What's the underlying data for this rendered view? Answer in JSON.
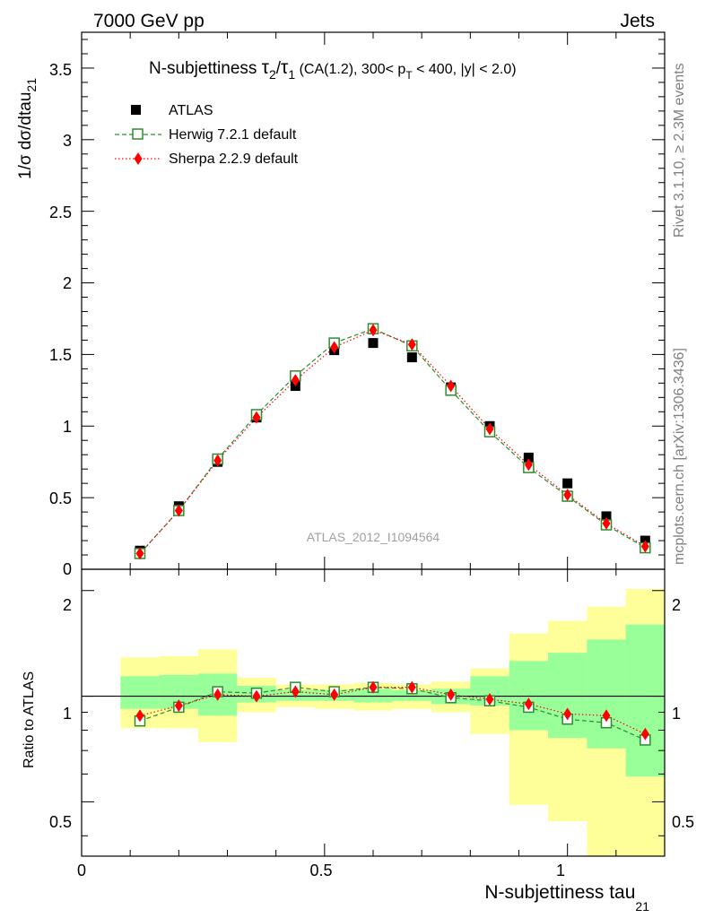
{
  "header": {
    "left": "7000 GeV pp",
    "right": "Jets"
  },
  "title": {
    "prefix": "N-subjettiness ",
    "tau2": "τ",
    "tau2_sub": "2",
    "slash": "/",
    "tau1": "τ",
    "tau1_sub": "1",
    "cond1": " (CA(1.2), 300< p",
    "pt_sub": "T",
    "cond2": " < 400, |y| < 2.0)"
  },
  "side_labels": {
    "rivet": "Rivet 3.1.10, ≥ 2.3M events",
    "mcplots": "mcplots.cern.ch [arXiv:1306.3436]"
  },
  "analysis_id": "ATLAS_2012_I1094564",
  "axis_labels": {
    "top_y_main": "1/σ dσ/dtau",
    "top_y_sub": "21",
    "bottom_y": "Ratio to ATLAS",
    "x_main": "N-subjettiness tau",
    "x_sub": "21"
  },
  "legend": [
    {
      "name": "ATLAS"
    },
    {
      "name": "Herwig 7.2.1 default"
    },
    {
      "name": "Sherpa 2.2.9 default"
    }
  ],
  "ticks": {
    "top_y": [
      "0",
      "0.5",
      "1",
      "1.5",
      "2",
      "2.5",
      "3",
      "3.5"
    ],
    "ratio_y": [
      "0.5",
      "1",
      "2"
    ],
    "x": [
      "0",
      "0.5",
      "1"
    ]
  },
  "colors": {
    "atlas": "#000000",
    "herwig": "#2d8c2d",
    "sherpa": "#ff0000",
    "band_inner": "#99ff99",
    "band_outer": "#ffff99"
  },
  "chart_data": [
    {
      "type": "scatter",
      "panel": "main",
      "title": "N-subjettiness τ2/τ1 (CA(1.2), 300< pT < 400, |y| < 2.0)",
      "xlabel": "N-subjettiness tau21",
      "ylabel": "1/σ dσ/dtau21",
      "xlim": [
        0,
        1.2
      ],
      "ylim": [
        0,
        3.75
      ],
      "bin_edges": [
        0.08,
        0.16,
        0.24,
        0.32,
        0.4,
        0.48,
        0.56,
        0.64,
        0.72,
        0.8,
        0.88,
        0.96,
        1.04,
        1.12,
        1.2
      ],
      "x": [
        0.12,
        0.2,
        0.28,
        0.36,
        0.44,
        0.52,
        0.6,
        0.68,
        0.76,
        0.84,
        0.92,
        1.0,
        1.08,
        1.16
      ],
      "series": [
        {
          "name": "ATLAS",
          "values": [
            0.13,
            0.44,
            0.75,
            1.06,
            1.28,
            1.53,
            1.58,
            1.48,
            1.27,
            1.0,
            0.78,
            0.6,
            0.37,
            0.2
          ]
        },
        {
          "name": "Herwig 7.2.1 default",
          "values": [
            0.11,
            0.41,
            0.77,
            1.08,
            1.35,
            1.58,
            1.68,
            1.56,
            1.25,
            0.96,
            0.71,
            0.51,
            0.31,
            0.15
          ]
        },
        {
          "name": "Sherpa 2.2.9 default",
          "values": [
            0.11,
            0.41,
            0.76,
            1.06,
            1.32,
            1.55,
            1.67,
            1.57,
            1.28,
            0.98,
            0.73,
            0.52,
            0.32,
            0.16
          ]
        }
      ]
    },
    {
      "type": "scatter",
      "panel": "ratio",
      "ylabel": "Ratio to ATLAS",
      "yscale": "log",
      "ylim": [
        0.35,
        2.3
      ],
      "x": [
        0.12,
        0.2,
        0.28,
        0.36,
        0.44,
        0.52,
        0.6,
        0.68,
        0.76,
        0.84,
        0.92,
        1.0,
        1.08,
        1.16
      ],
      "band_inner": {
        "low": [
          0.92,
          0.92,
          0.88,
          0.96,
          0.97,
          0.97,
          0.96,
          0.97,
          0.95,
          0.94,
          0.8,
          0.76,
          0.71,
          0.59
        ],
        "high": [
          1.14,
          1.15,
          1.16,
          1.07,
          1.04,
          1.04,
          1.05,
          1.04,
          1.05,
          1.14,
          1.26,
          1.33,
          1.45,
          1.6
        ]
      },
      "band_outer": {
        "low": [
          0.81,
          0.81,
          0.74,
          0.9,
          0.93,
          0.92,
          0.91,
          0.92,
          0.9,
          0.78,
          0.49,
          0.44,
          0.33,
          0.28
        ],
        "high": [
          1.29,
          1.3,
          1.36,
          1.13,
          1.08,
          1.08,
          1.09,
          1.08,
          1.1,
          1.2,
          1.51,
          1.64,
          1.8,
          2.02
        ]
      },
      "series": [
        {
          "name": "Herwig 7.2.1 default",
          "values": [
            0.85,
            0.93,
            1.03,
            1.02,
            1.06,
            1.03,
            1.06,
            1.05,
            0.99,
            0.97,
            0.93,
            0.86,
            0.84,
            0.75
          ]
        },
        {
          "name": "Sherpa 2.2.9 default",
          "values": [
            0.88,
            0.94,
            1.01,
            1.0,
            1.03,
            1.01,
            1.06,
            1.06,
            1.01,
            0.98,
            0.95,
            0.89,
            0.88,
            0.78
          ]
        }
      ]
    }
  ]
}
